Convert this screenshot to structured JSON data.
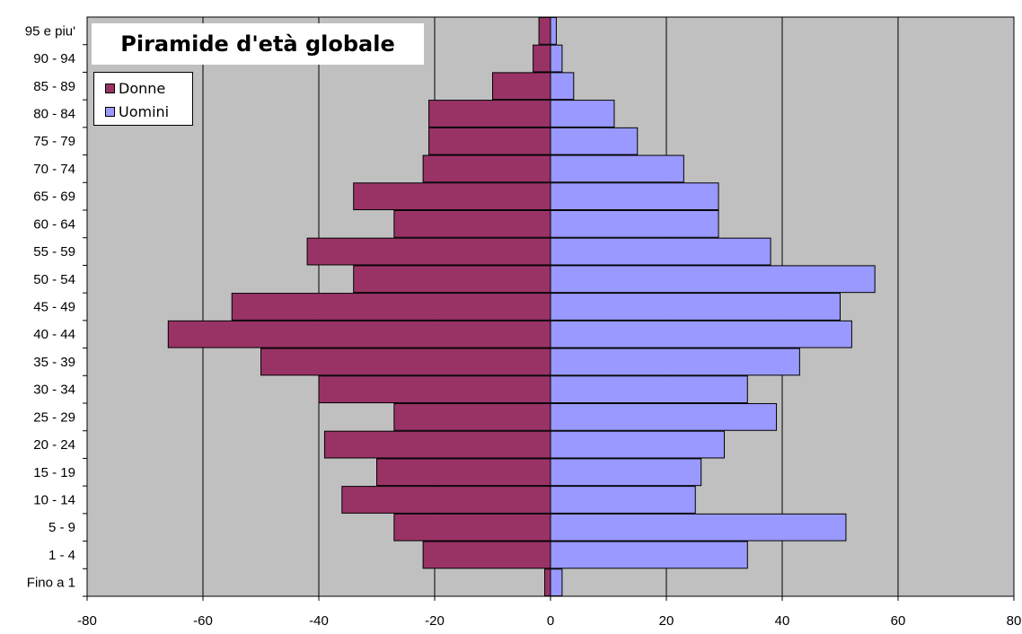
{
  "chart_data": {
    "type": "bar",
    "orientation": "horizontal",
    "title": "Piramide d'età globale",
    "categories": [
      "Fino a 1",
      "1 - 4",
      "5 - 9",
      "10 - 14",
      "15 - 19",
      "20 - 24",
      "25 - 29",
      "30 - 34",
      "35 - 39",
      "40 - 44",
      "45 - 49",
      "50 - 54",
      "55 - 59",
      "60 - 64",
      "65 - 69",
      "70 - 74",
      "75 - 79",
      "80 - 84",
      "85 - 89",
      "90 - 94",
      "95 e piu'"
    ],
    "series": [
      {
        "name": "Donne",
        "color": "#993366",
        "values": [
          -1,
          -22,
          -27,
          -36,
          -30,
          -39,
          -27,
          -40,
          -50,
          -66,
          -55,
          -34,
          -42,
          -27,
          -34,
          -22,
          -21,
          -21,
          -10,
          -3,
          -2
        ]
      },
      {
        "name": "Uomini",
        "color": "#9999ff",
        "values": [
          2,
          34,
          51,
          25,
          26,
          30,
          39,
          34,
          43,
          52,
          50,
          56,
          38,
          29,
          29,
          23,
          15,
          11,
          4,
          2,
          1
        ]
      }
    ],
    "xlim": [
      -80,
      80
    ],
    "xticks": [
      -80,
      -60,
      -40,
      -20,
      0,
      20,
      40,
      60,
      80
    ],
    "xlabel": "",
    "ylabel": "",
    "grid": true,
    "legend": "top-left",
    "plot_background": "#c0c0c0"
  }
}
